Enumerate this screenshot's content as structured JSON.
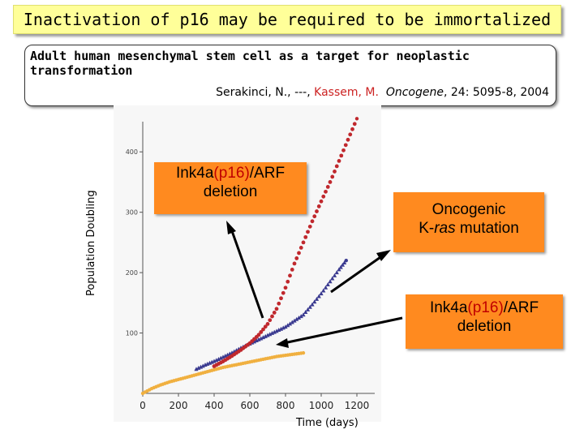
{
  "title": "Inactivation of p16 may be required to be immortalized",
  "citation": {
    "paper_title": "Adult human mesenchymal stem cell as a target for neoplastic transformation",
    "authors_plain": "Serakinci, N., ---, ",
    "authors_highlight": "Kassem, M.",
    "journal": "Oncogene",
    "details": ", 24: 5095-8, 2004"
  },
  "axes": {
    "ylabel": "Population Doubling",
    "xlabel": "Time (days)"
  },
  "callouts": {
    "deletion_top": {
      "pre": "Ink4a",
      "hl": "(p16)",
      "post": "/ARF",
      "line2": "deletion"
    },
    "kras": {
      "line1": "Oncogenic",
      "pre": "K-",
      "it": "ras",
      "post": " mutation"
    },
    "deletion_bottom": {
      "pre": "Ink4a",
      "hl": "(p16)",
      "post": "/ARF",
      "line2": "deletion"
    }
  },
  "colors": {
    "title_bg": "#ffff99",
    "callout_bg": "#ff8a1f",
    "red_series": "#c0282d",
    "blue_series": "#3a3a90",
    "yellow_series": "#f0b040"
  },
  "chart_data": {
    "type": "scatter",
    "xlim": [
      0,
      1300
    ],
    "ylim": [
      0,
      450
    ],
    "x_ticks": [
      "0",
      "200",
      "400",
      "600",
      "800",
      "1000",
      "1200"
    ],
    "y_ticks": [
      "100",
      "200",
      "300",
      "400"
    ],
    "series": [
      {
        "color": "#f0b040",
        "points": [
          [
            0,
            0
          ],
          [
            50,
            8
          ],
          [
            100,
            14
          ],
          [
            150,
            19
          ],
          [
            200,
            23
          ],
          [
            250,
            27
          ],
          [
            300,
            31
          ],
          [
            350,
            35
          ],
          [
            400,
            39
          ],
          [
            450,
            43
          ],
          [
            500,
            46
          ],
          [
            550,
            49
          ],
          [
            600,
            52
          ],
          [
            650,
            55
          ],
          [
            700,
            58
          ],
          [
            750,
            61
          ],
          [
            800,
            63
          ],
          [
            850,
            65
          ],
          [
            900,
            67
          ]
        ]
      },
      {
        "color": "#3a3a90",
        "points": [
          [
            300,
            40
          ],
          [
            350,
            47
          ],
          [
            400,
            53
          ],
          [
            450,
            60
          ],
          [
            500,
            67
          ],
          [
            550,
            75
          ],
          [
            600,
            82
          ],
          [
            650,
            89
          ],
          [
            700,
            96
          ],
          [
            750,
            103
          ],
          [
            800,
            110
          ],
          [
            850,
            120
          ],
          [
            900,
            130
          ],
          [
            950,
            147
          ],
          [
            1000,
            165
          ],
          [
            1050,
            185
          ],
          [
            1100,
            205
          ],
          [
            1140,
            220
          ]
        ]
      },
      {
        "color": "#c0282d",
        "points": [
          [
            400,
            45
          ],
          [
            450,
            53
          ],
          [
            500,
            62
          ],
          [
            550,
            72
          ],
          [
            600,
            83
          ],
          [
            650,
            97
          ],
          [
            700,
            115
          ],
          [
            750,
            140
          ],
          [
            800,
            175
          ],
          [
            850,
            215
          ],
          [
            900,
            250
          ],
          [
            950,
            285
          ],
          [
            1000,
            318
          ],
          [
            1050,
            350
          ],
          [
            1100,
            385
          ],
          [
            1150,
            420
          ],
          [
            1200,
            455
          ]
        ]
      }
    ]
  }
}
